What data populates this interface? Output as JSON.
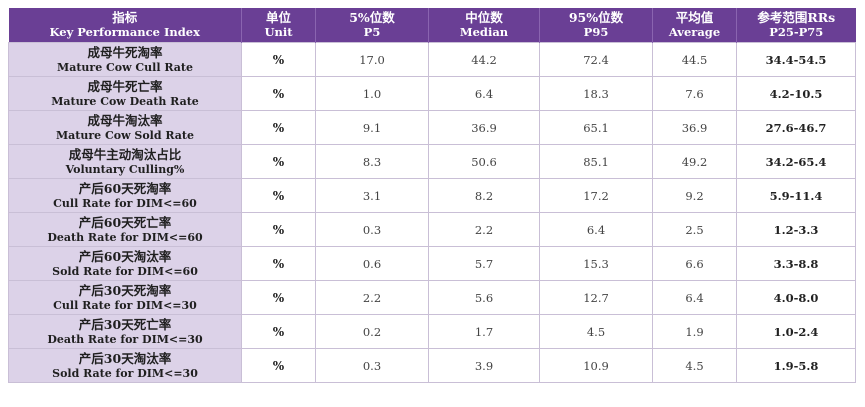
{
  "headers": [
    {
      "cn": "指标",
      "en": "Key Performance Index"
    },
    {
      "cn": "单位",
      "en": "Unit"
    },
    {
      "cn": "5%位数",
      "en": "P5"
    },
    {
      "cn": "中位数",
      "en": "Median"
    },
    {
      "cn": "95%位数",
      "en": "P95"
    },
    {
      "cn": "平均值",
      "en": "Average"
    },
    {
      "cn": "参考范围RRs",
      "en": "P25-P75"
    }
  ],
  "rows": [
    {
      "cn": "成母牛死淘率",
      "en": "Mature Cow Cull Rate",
      "unit": "%",
      "p5": "17.0",
      "median": "44.2",
      "p95": "72.4",
      "avg": "44.5",
      "range": "34.4-54.5"
    },
    {
      "cn": "成母牛死亡率",
      "en": "Mature Cow Death Rate",
      "unit": "%",
      "p5": "1.0",
      "median": "6.4",
      "p95": "18.3",
      "avg": "7.6",
      "range": "4.2-10.5"
    },
    {
      "cn": "成母牛淘汰率",
      "en": "Mature Cow Sold Rate",
      "unit": "%",
      "p5": "9.1",
      "median": "36.9",
      "p95": "65.1",
      "avg": "36.9",
      "range": "27.6-46.7"
    },
    {
      "cn": "成母牛主动淘汰占比",
      "en": "Voluntary Culling%",
      "unit": "%",
      "p5": "8.3",
      "median": "50.6",
      "p95": "85.1",
      "avg": "49.2",
      "range": "34.2-65.4"
    },
    {
      "cn": "产后60天死淘率",
      "en": "Cull Rate for DIM<=60",
      "unit": "%",
      "p5": "3.1",
      "median": "8.2",
      "p95": "17.2",
      "avg": "9.2",
      "range": "5.9-11.4"
    },
    {
      "cn": "产后60天死亡率",
      "en": "Death Rate for DIM<=60",
      "unit": "%",
      "p5": "0.3",
      "median": "2.2",
      "p95": "6.4",
      "avg": "2.5",
      "range": "1.2-3.3"
    },
    {
      "cn": "产后60天淘汰率",
      "en": "Sold Rate for DIM<=60",
      "unit": "%",
      "p5": "0.6",
      "median": "5.7",
      "p95": "15.3",
      "avg": "6.6",
      "range": "3.3-8.8"
    },
    {
      "cn": "产后30天死淘率",
      "en": "Cull Rate for DIM<=30",
      "unit": "%",
      "p5": "2.2",
      "median": "5.6",
      "p95": "12.7",
      "avg": "6.4",
      "range": "4.0-8.0"
    },
    {
      "cn": "产后30天死亡率",
      "en": "Death Rate for DIM<=30",
      "unit": "%",
      "p5": "0.2",
      "median": "1.7",
      "p95": "4.5",
      "avg": "1.9",
      "range": "1.0-2.4"
    },
    {
      "cn": "产后30天淘汰率",
      "en": "Sold Rate for DIM<=30",
      "unit": "%",
      "p5": "0.3",
      "median": "3.9",
      "p95": "10.9",
      "avg": "4.5",
      "range": "1.9-5.8"
    }
  ],
  "colors": {
    "header_bg": "#6a3f95",
    "header_text": "#ffffff",
    "name_cell_bg": "#dcd2e8",
    "grid_line": "#c9bfd6"
  }
}
